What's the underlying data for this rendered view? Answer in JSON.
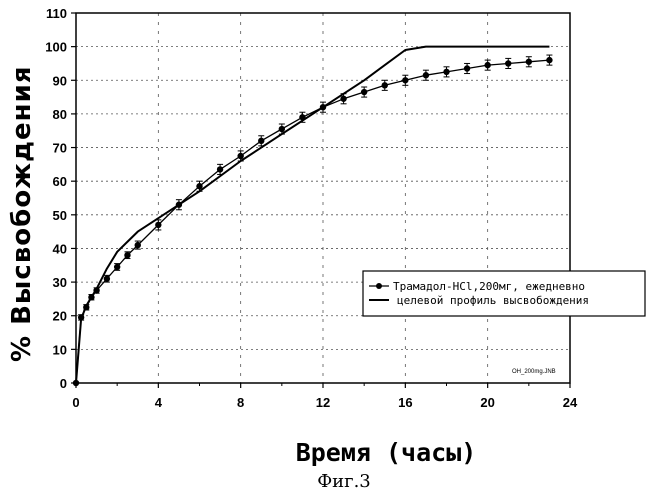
{
  "chart_data": {
    "type": "line",
    "x_ticks": [
      "0",
      "4",
      "8",
      "12",
      "16",
      "20",
      "24"
    ],
    "y_ticks": [
      "0",
      "10",
      "20",
      "30",
      "40",
      "50",
      "60",
      "70",
      "80",
      "90",
      "100",
      "110"
    ],
    "xlim": [
      0,
      24
    ],
    "ylim": [
      0,
      110
    ],
    "xlabel": "Время  (часы)",
    "ylabel": "% Высвобождения",
    "caption": "Фиг.3",
    "file_note": "OH_200mg.JNB",
    "grid": true,
    "legend_position": "right, lower-middle",
    "series": [
      {
        "name": "Трамадол-HCl,200мг, ежедневно",
        "style": "line-with-markers-errorbars",
        "x": [
          0,
          0.25,
          0.5,
          0.75,
          1,
          1.5,
          2,
          2.5,
          3,
          4,
          5,
          6,
          7,
          8,
          9,
          10,
          11,
          12,
          13,
          14,
          15,
          16,
          17,
          18,
          19,
          20,
          21,
          22,
          23
        ],
        "y": [
          0,
          19.5,
          22.5,
          25.5,
          27.5,
          31,
          34.5,
          38,
          41,
          47,
          53,
          58.5,
          63.5,
          67.5,
          72,
          75.5,
          79,
          82,
          84.5,
          86.5,
          88.5,
          90,
          91.5,
          92.5,
          93.5,
          94.5,
          95,
          95.5,
          96
        ],
        "err": [
          0,
          0.8,
          0.8,
          0.8,
          0.8,
          1,
          1,
          1,
          1.2,
          1.5,
          1.5,
          1.5,
          1.5,
          1.5,
          1.5,
          1.5,
          1.5,
          1.5,
          1.5,
          1.5,
          1.5,
          1.5,
          1.5,
          1.5,
          1.5,
          1.5,
          1.5,
          1.5,
          1.5
        ]
      },
      {
        "name": "целевой профиль высвобождения",
        "style": "line",
        "x": [
          0,
          0.25,
          0.5,
          1,
          1.5,
          2,
          3,
          4,
          5,
          6,
          8,
          10,
          12,
          14,
          15,
          16,
          17,
          18,
          20,
          22,
          23
        ],
        "y": [
          0,
          19,
          23,
          28,
          34,
          39,
          45,
          49,
          53,
          57,
          66,
          74,
          82,
          90,
          94.5,
          99,
          100,
          100,
          100,
          100,
          100
        ]
      }
    ]
  }
}
